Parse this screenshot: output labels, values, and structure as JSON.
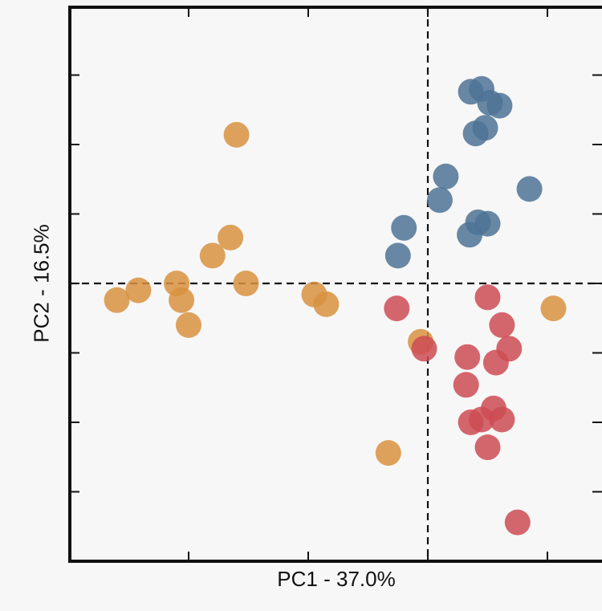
{
  "chart_data": {
    "type": "scatter",
    "title": "",
    "xlabel": "PC1 - 37.0%",
    "ylabel": "PC2 - 16.5%",
    "xlim": [
      -3,
      1.4
    ],
    "ylim": [
      -2,
      2
    ],
    "grid": false,
    "reference_lines": {
      "x": 0,
      "y": 0
    },
    "series": [
      {
        "color": "#d8923f",
        "points": [
          [
            -2.6,
            -0.12
          ],
          [
            -2.42,
            -0.05
          ],
          [
            -2.1,
            0.0
          ],
          [
            -2.06,
            -0.12
          ],
          [
            -2.0,
            -0.3
          ],
          [
            -1.8,
            0.2
          ],
          [
            -1.65,
            0.33
          ],
          [
            -1.6,
            1.07
          ],
          [
            -1.52,
            0.0
          ],
          [
            -0.95,
            -0.08
          ],
          [
            -0.85,
            -0.15
          ],
          [
            -0.33,
            -1.22
          ],
          [
            -0.06,
            -0.42
          ],
          [
            1.05,
            -0.18
          ]
        ]
      },
      {
        "color": "#4e7395",
        "points": [
          [
            0.36,
            1.38
          ],
          [
            0.45,
            1.4
          ],
          [
            0.52,
            1.3
          ],
          [
            0.48,
            1.12
          ],
          [
            0.4,
            1.08
          ],
          [
            0.6,
            1.28
          ],
          [
            0.15,
            0.77
          ],
          [
            0.1,
            0.6
          ],
          [
            0.85,
            0.68
          ],
          [
            -0.2,
            0.4
          ],
          [
            0.5,
            0.43
          ],
          [
            0.42,
            0.44
          ],
          [
            0.35,
            0.35
          ],
          [
            -0.25,
            0.2
          ]
        ]
      },
      {
        "color": "#cd4c54",
        "points": [
          [
            -0.26,
            -0.18
          ],
          [
            0.5,
            -0.1
          ],
          [
            0.62,
            -0.3
          ],
          [
            -0.03,
            -0.47
          ],
          [
            0.33,
            -0.53
          ],
          [
            0.68,
            -0.47
          ],
          [
            0.57,
            -0.57
          ],
          [
            0.32,
            -0.73
          ],
          [
            0.55,
            -0.9
          ],
          [
            0.45,
            -0.98
          ],
          [
            0.62,
            -0.98
          ],
          [
            0.36,
            -1.0
          ],
          [
            0.5,
            -1.18
          ],
          [
            0.75,
            -1.72
          ]
        ]
      }
    ]
  }
}
